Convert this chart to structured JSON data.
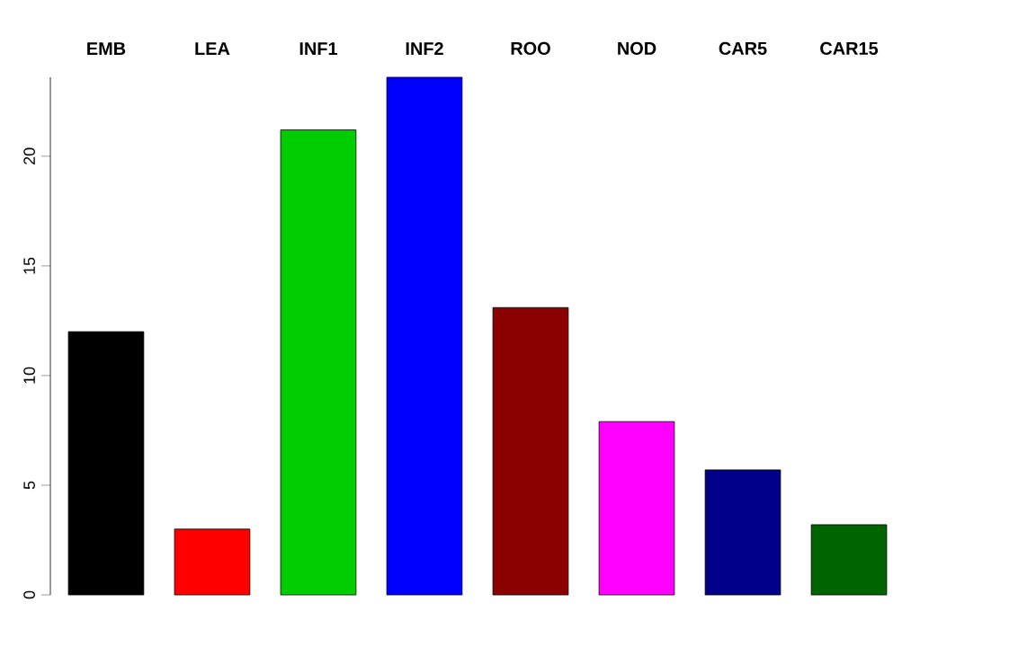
{
  "chart_data": {
    "type": "bar",
    "categories": [
      "EMB",
      "LEA",
      "INF1",
      "INF2",
      "ROO",
      "NOD",
      "CAR5",
      "CAR15"
    ],
    "values": [
      12.0,
      3.0,
      21.2,
      23.6,
      13.1,
      7.9,
      5.7,
      3.2
    ],
    "colors": [
      "#000000",
      "#ff0000",
      "#00cd00",
      "#0000ff",
      "#8b0000",
      "#ff00ff",
      "#00008b",
      "#006400"
    ],
    "ylim": [
      0,
      23.6
    ],
    "yticks": [
      0,
      5,
      10,
      15,
      20
    ]
  }
}
